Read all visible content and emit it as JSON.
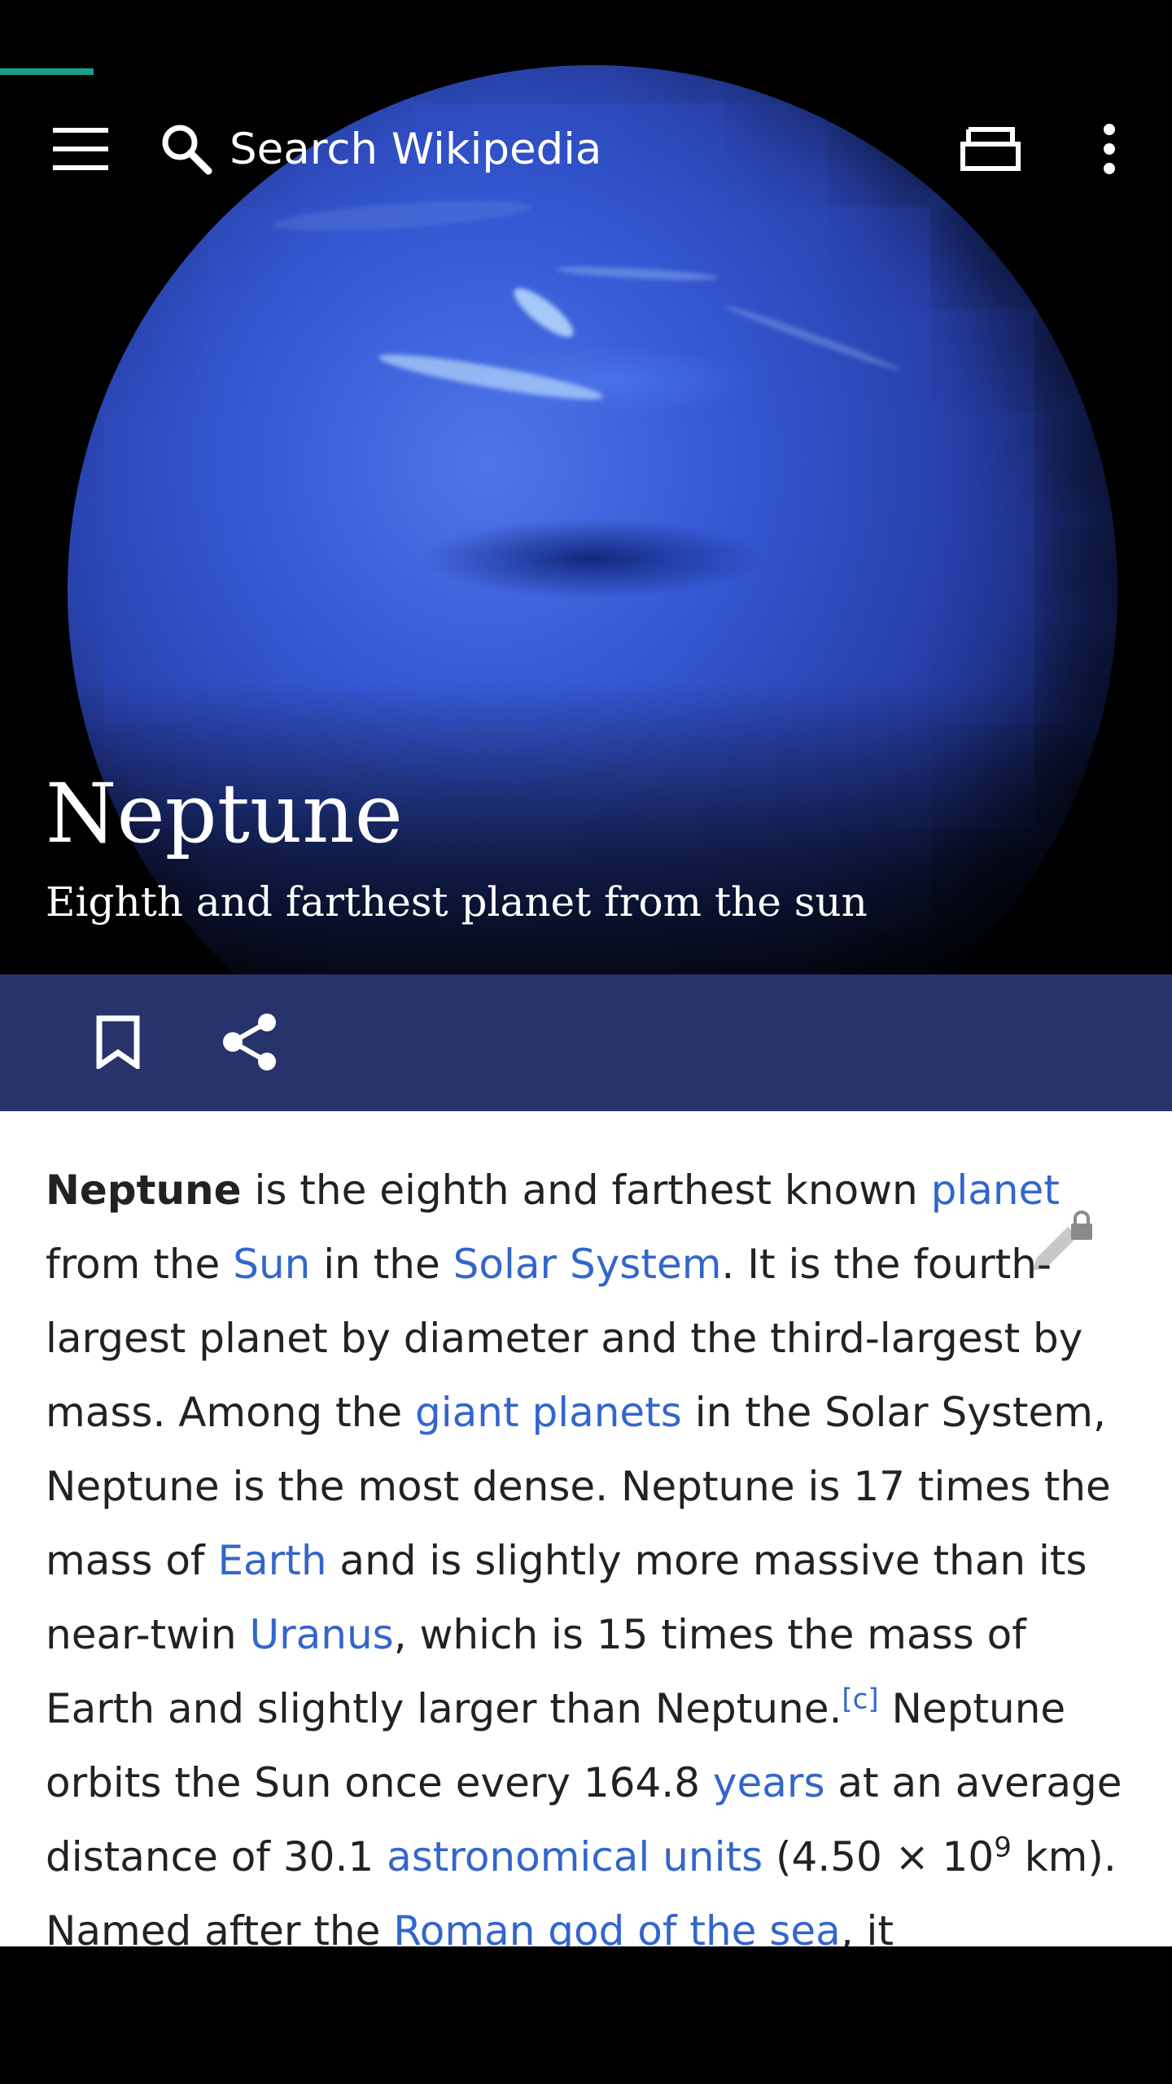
{
  "toolbar": {
    "search_placeholder": "Search Wikipedia"
  },
  "article": {
    "title": "Neptune",
    "description": "Eighth and farthest planet from the sun",
    "text": {
      "t1": "Neptune",
      "t2": " is the eighth and farthest known ",
      "l1": "planet",
      "t3": " from the ",
      "l2": "Sun",
      "t4": " in the ",
      "l3": "Solar System",
      "t5": ". It is the fourth-largest planet by diameter and the third-largest by mass. Among the ",
      "l4": "giant planets",
      "t6": " in the Solar System, Neptune is the most dense. Neptune is 17 times the mass of ",
      "l5": "Earth",
      "t7": " and is slightly more massive than its near-twin ",
      "l6": "Uranus",
      "t8": ", which is 15 times the mass of Earth and slightly larger than Neptune.",
      "ref": "[c]",
      "t9": " Neptune orbits the Sun once every 164.8 ",
      "l7": "years",
      "t10": " at an average distance of 30.1 ",
      "l8": "astronomical units",
      "t11": " (4.50 × 10",
      "exp": "9",
      "t12": " km). Named after the ",
      "l9": "Roman god of the sea",
      "t13": ", it"
    }
  },
  "colors": {
    "accent": "#14a08c",
    "action_bar": "#27336a",
    "link": "#3366cc"
  },
  "icons": [
    "menu-icon",
    "search-icon",
    "tabs-icon",
    "overflow-icon",
    "bookmark-icon",
    "share-icon",
    "edit-locked-icon"
  ]
}
